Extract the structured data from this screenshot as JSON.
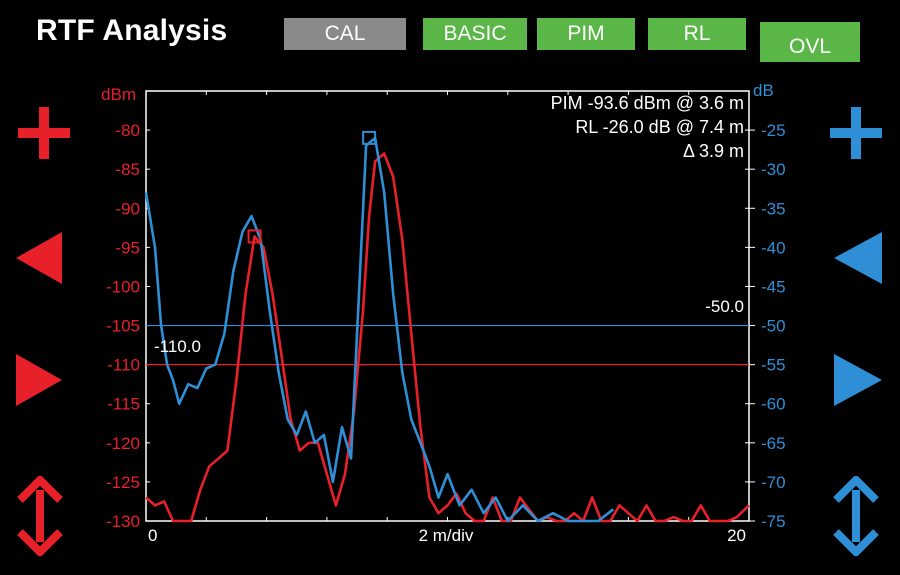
{
  "header": {
    "title": "RTF Analysis",
    "buttons": {
      "cal": "CAL",
      "basic": "BASIC",
      "pim": "PIM",
      "rl": "RL",
      "ovl": "OVL"
    }
  },
  "colors": {
    "pim": "#e8202a",
    "rl": "#2f8fd6",
    "active_button": "#5ab646",
    "inactive_button": "#8a8a8a"
  },
  "controls": {
    "left": [
      "plus-icon",
      "arrow-left-icon",
      "arrow-right-icon",
      "updown-arrow-icon"
    ],
    "right": [
      "plus-icon",
      "arrow-left-icon",
      "arrow-right-icon",
      "updown-arrow-icon"
    ]
  },
  "readout": {
    "pim": "PIM -93.6 dBm @ 3.6 m",
    "rl": "RL -26.0 dB @ 7.4 m",
    "delta": "Δ 3.9 m"
  },
  "limits": {
    "pim_label": "-110.0",
    "pim_value": -110.0,
    "rl_label": "-50.0",
    "rl_value": -50.0
  },
  "chart_data": {
    "type": "line",
    "x_unit_label": "2 m/div",
    "xlim": [
      0,
      20
    ],
    "x_ticks": [
      "0",
      "20"
    ],
    "left_axis": {
      "unit": "dBm",
      "ylim": [
        -130,
        -75
      ],
      "ticks": [
        "-80",
        "-85",
        "-90",
        "-95",
        "-100",
        "-105",
        "-110",
        "-115",
        "-120",
        "-125",
        "-130"
      ]
    },
    "right_axis": {
      "unit": "dB",
      "ylim": [
        -75,
        -20
      ],
      "ticks": [
        "-25",
        "-30",
        "-35",
        "-40",
        "-45",
        "-50",
        "-55",
        "-60",
        "-65",
        "-70",
        "-75"
      ]
    },
    "series": [
      {
        "name": "PIM",
        "axis": "left",
        "color": "#e8202a",
        "x": [
          0,
          0.3,
          0.6,
          0.9,
          1.2,
          1.5,
          1.8,
          2.1,
          2.4,
          2.7,
          3.0,
          3.3,
          3.6,
          3.9,
          4.2,
          4.5,
          4.8,
          5.1,
          5.4,
          5.7,
          6.0,
          6.3,
          6.6,
          6.9,
          7.2,
          7.4,
          7.6,
          7.9,
          8.2,
          8.5,
          8.8,
          9.1,
          9.4,
          9.7,
          10.0,
          10.3,
          10.6,
          10.9,
          11.2,
          11.5,
          11.8,
          12.1,
          12.4,
          12.7,
          13.0,
          13.3,
          13.6,
          13.9,
          14.2,
          14.5,
          14.8,
          15.1,
          15.4,
          15.7,
          16.0,
          16.3,
          16.6,
          16.9,
          17.2,
          17.5,
          17.8,
          18.1,
          18.4,
          18.7,
          19.0,
          19.3,
          19.6,
          20.0
        ],
        "y": [
          -127,
          -128,
          -127.5,
          -130,
          -130,
          -130,
          -126,
          -123,
          -122,
          -121,
          -112,
          -101,
          -93.6,
          -95,
          -101,
          -109,
          -117,
          -121,
          -120,
          -120,
          -124,
          -128,
          -124,
          -116,
          -103,
          -91,
          -84,
          -83,
          -86,
          -94,
          -106,
          -118,
          -127,
          -129,
          -128,
          -126.5,
          -129,
          -130,
          -130,
          -127,
          -130,
          -130,
          -127,
          -128.5,
          -130,
          -129.5,
          -130,
          -130,
          -129,
          -130,
          -127,
          -130,
          -130,
          -128,
          -129,
          -130,
          -128,
          -130,
          -130,
          -129.5,
          -130,
          -130,
          -128,
          -130,
          -130,
          -130,
          -129.5,
          -128
        ]
      },
      {
        "name": "RL",
        "axis": "right",
        "color": "#2f8fd6",
        "x": [
          0,
          0.3,
          0.5,
          0.7,
          0.9,
          1.1,
          1.4,
          1.7,
          2.0,
          2.3,
          2.6,
          2.9,
          3.2,
          3.5,
          3.8,
          4.1,
          4.4,
          4.7,
          5.0,
          5.3,
          5.6,
          5.9,
          6.2,
          6.5,
          6.8,
          7.1,
          7.3,
          7.6,
          7.9,
          8.2,
          8.5,
          8.8,
          9.1,
          9.4,
          9.7,
          10.0,
          10.4,
          10.8,
          11.2,
          11.6,
          12.0,
          12.5,
          13.0,
          13.5,
          14.0,
          14.5,
          15.0,
          15.5
        ],
        "y": [
          -33,
          -40,
          -50,
          -55,
          -57,
          -60,
          -57.5,
          -58,
          -55.5,
          -55,
          -51,
          -43,
          -38,
          -36,
          -39,
          -48,
          -56,
          -62,
          -64,
          -61,
          -65,
          -64,
          -70,
          -63,
          -67,
          -43,
          -27,
          -26,
          -33,
          -46,
          -56,
          -62,
          -65,
          -68,
          -72,
          -69,
          -73,
          -71,
          -74,
          -72,
          -75,
          -73,
          -75,
          -74,
          -75,
          -75,
          -75,
          -73.5
        ]
      }
    ],
    "markers": [
      {
        "series": "PIM",
        "x": 3.6,
        "y": -93.6,
        "shape": "square"
      },
      {
        "series": "RL",
        "x": 7.4,
        "y": -26.0,
        "shape": "square"
      }
    ]
  }
}
